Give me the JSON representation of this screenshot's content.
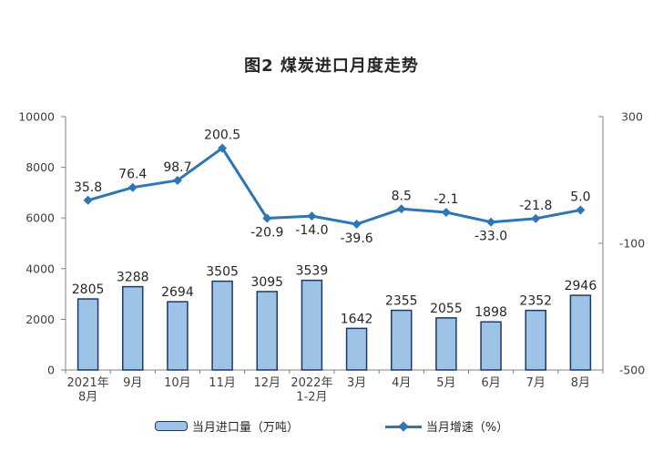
{
  "title": "图2 煤炭进口月度走势",
  "chart_data": {
    "type": "bar+line",
    "title": "图2 煤炭进口月度走势",
    "categories": [
      [
        "2021年",
        "8月"
      ],
      [
        "9月"
      ],
      [
        "10月"
      ],
      [
        "11月"
      ],
      [
        "12月"
      ],
      [
        "2022年",
        "1-2月"
      ],
      [
        "3月"
      ],
      [
        "4月"
      ],
      [
        "5月"
      ],
      [
        "6月"
      ],
      [
        "7月"
      ],
      [
        "8月"
      ]
    ],
    "series": [
      {
        "name": "当月进口量（万吨）",
        "type": "bar",
        "axis": "left",
        "values": [
          2805,
          3288,
          2694,
          3505,
          3095,
          3539,
          1642,
          2355,
          2055,
          1898,
          2352,
          2946
        ],
        "labels": [
          "2805",
          "3288",
          "2694",
          "3505",
          "3095",
          "3539",
          "1642",
          "2355",
          "2055",
          "1898",
          "2352",
          "2946"
        ]
      },
      {
        "name": "当月增速（%）",
        "type": "line",
        "axis": "right",
        "values": [
          35.8,
          76.4,
          98.7,
          200.5,
          -20.9,
          -14.0,
          -39.6,
          8.5,
          -2.1,
          -33.0,
          -21.8,
          5.0
        ],
        "labels": [
          "35.8",
          "76.4",
          "98.7",
          "200.5",
          "-20.9",
          "-14.0",
          "-39.6",
          "8.5",
          "-2.1",
          "-33.0",
          "-21.8",
          "5.0"
        ],
        "label_positions": [
          "above",
          "above",
          "above",
          "above",
          "below",
          "below",
          "below",
          "above",
          "above",
          "below",
          "above",
          "above"
        ]
      }
    ],
    "left_axis": {
      "min": 0,
      "max": 10000,
      "ticks": [
        0,
        2000,
        4000,
        6000,
        8000,
        10000
      ]
    },
    "right_axis": {
      "min": -500,
      "max": 300,
      "ticks": [
        -500,
        -100,
        300
      ]
    },
    "legend_position": "bottom",
    "grid": false,
    "colors": {
      "bar_fill": "#9DC3E6",
      "bar_border": "#1F3864",
      "line": "#2E75B6",
      "label_text": "#262626",
      "axis_text": "#404040",
      "axis_line": "#808080"
    }
  }
}
